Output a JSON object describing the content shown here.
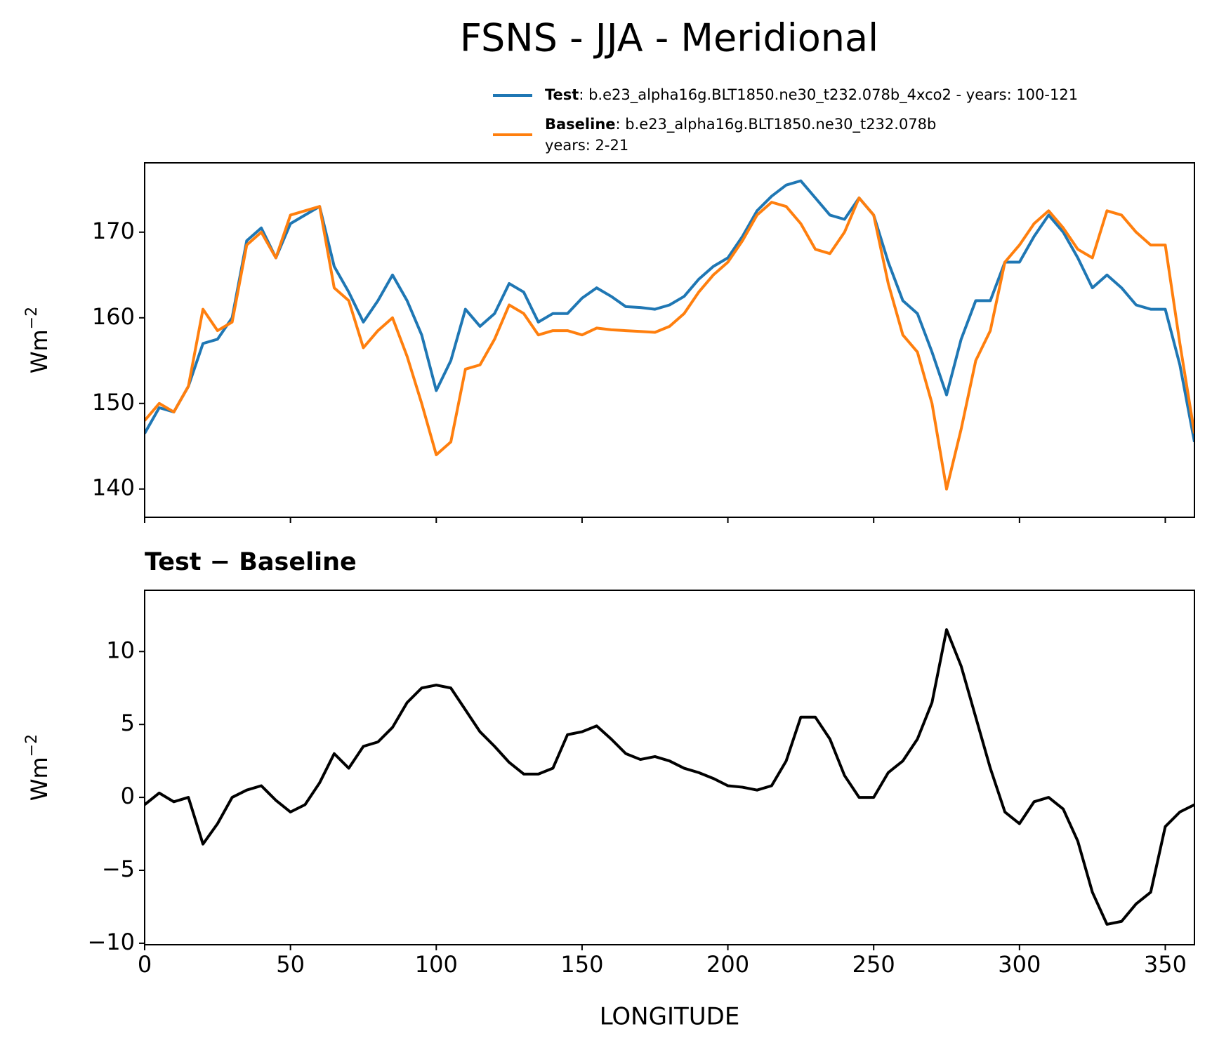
{
  "chart_data": [
    {
      "type": "line",
      "title": "FSNS - JJA - Meridional",
      "ylabel": "Wm",
      "ylabel_sup": "−2",
      "x": [
        0,
        5,
        10,
        15,
        20,
        25,
        30,
        35,
        40,
        45,
        50,
        55,
        60,
        65,
        70,
        75,
        80,
        85,
        90,
        95,
        100,
        105,
        110,
        115,
        120,
        125,
        130,
        135,
        140,
        145,
        150,
        155,
        160,
        165,
        170,
        175,
        180,
        185,
        190,
        195,
        200,
        205,
        210,
        215,
        220,
        225,
        230,
        235,
        240,
        245,
        250,
        255,
        260,
        265,
        270,
        275,
        280,
        285,
        290,
        295,
        300,
        305,
        310,
        315,
        320,
        325,
        330,
        335,
        340,
        345,
        350,
        355,
        360
      ],
      "series": [
        {
          "name": "Test",
          "legend_text": [
            ": b.e23_alpha16g.BLT1850.ne30_t232.078b_4xco2 - years: 100-121"
          ],
          "color": "#1f77b4",
          "values": [
            146.5,
            149.5,
            149,
            152,
            157,
            157.5,
            160,
            169,
            170.5,
            167,
            171,
            172,
            173,
            166,
            163,
            159.5,
            162,
            165,
            162,
            158,
            151.5,
            155,
            161,
            159,
            160.5,
            164,
            163,
            159.5,
            160.5,
            160.5,
            162.3,
            163.5,
            162.5,
            161.3,
            161.2,
            161,
            161.5,
            162.5,
            164.5,
            166,
            167,
            169.5,
            172.5,
            174.2,
            175.5,
            176,
            174,
            172,
            171.5,
            174,
            172,
            166.5,
            162,
            160.5,
            156,
            151,
            157.5,
            162,
            162,
            166.5,
            166.5,
            169.5,
            172,
            170,
            167,
            163.5,
            165,
            163.5,
            161.5,
            161,
            161,
            154.5,
            145.5
          ]
        },
        {
          "name": "Baseline",
          "legend_text": [
            ": b.e23_alpha16g.BLT1850.ne30_t232.078b",
            "years: 2-21"
          ],
          "color": "#ff7f0e",
          "values": [
            148,
            150,
            149,
            152,
            161,
            158.5,
            159.5,
            168.5,
            170,
            167,
            172,
            172.5,
            173,
            163.5,
            162,
            156.5,
            158.5,
            160,
            155.5,
            150,
            144,
            145.5,
            154,
            154.5,
            157.5,
            161.5,
            160.5,
            158,
            158.5,
            158.5,
            158,
            158.8,
            158.6,
            158.5,
            158.4,
            158.3,
            159,
            160.5,
            163,
            165,
            166.5,
            169,
            172,
            173.5,
            173,
            171,
            168,
            167.5,
            170,
            174,
            172,
            164,
            158,
            156,
            150,
            140,
            147,
            155,
            158.5,
            166.5,
            168.5,
            171,
            172.5,
            170.5,
            168,
            167,
            172.5,
            172,
            170,
            168.5,
            168.5,
            157,
            146.5
          ]
        }
      ],
      "xlim": [
        0,
        360
      ],
      "xticks": [
        0,
        50,
        100,
        150,
        200,
        250,
        300,
        350
      ],
      "x_tick_labels": false,
      "ylim": [
        136.7,
        178.1
      ],
      "yticks": [
        140,
        150,
        160,
        170
      ]
    },
    {
      "type": "line",
      "title": "Test − Baseline",
      "ylabel": "Wm",
      "ylabel_sup": "−2",
      "xlabel": "LONGITUDE",
      "x": [
        0,
        5,
        10,
        15,
        20,
        25,
        30,
        35,
        40,
        45,
        50,
        55,
        60,
        65,
        70,
        75,
        80,
        85,
        90,
        95,
        100,
        105,
        110,
        115,
        120,
        125,
        130,
        135,
        140,
        145,
        150,
        155,
        160,
        165,
        170,
        175,
        180,
        185,
        190,
        195,
        200,
        205,
        210,
        215,
        220,
        225,
        230,
        235,
        240,
        245,
        250,
        255,
        260,
        265,
        270,
        275,
        280,
        285,
        290,
        295,
        300,
        305,
        310,
        315,
        320,
        325,
        330,
        335,
        340,
        345,
        350,
        355,
        360
      ],
      "series": [
        {
          "color": "#000000",
          "values": [
            -0.5,
            0.3,
            -0.3,
            0,
            -3.2,
            -1.8,
            0,
            0.5,
            0.8,
            -0.2,
            -1,
            -0.5,
            1,
            3,
            2,
            3.5,
            3.8,
            4.8,
            6.5,
            7.5,
            7.7,
            7.5,
            6,
            4.5,
            3.5,
            2.4,
            1.6,
            1.6,
            2,
            4.3,
            4.5,
            4.9,
            4,
            3,
            2.6,
            2.8,
            2.5,
            2,
            1.7,
            1.3,
            0.8,
            0.7,
            0.5,
            0.8,
            2.5,
            5.5,
            5.5,
            4,
            1.5,
            0,
            0,
            1.7,
            2.5,
            4,
            6.5,
            11.5,
            9,
            5.5,
            2,
            -1,
            -1.8,
            -0.3,
            0,
            -0.8,
            -3,
            -6.5,
            -8.7,
            -8.5,
            -7.3,
            -6.5,
            -2,
            -1,
            -0.5
          ]
        }
      ],
      "xlim": [
        0,
        360
      ],
      "xticks": [
        0,
        50,
        100,
        150,
        200,
        250,
        300,
        350
      ],
      "x_tick_labels": true,
      "ylim": [
        -10.1,
        14.2
      ],
      "yticks": [
        {
          "value": -10,
          "label": "−10"
        },
        {
          "value": -5,
          "label": "−5"
        },
        0,
        5,
        10
      ]
    }
  ]
}
